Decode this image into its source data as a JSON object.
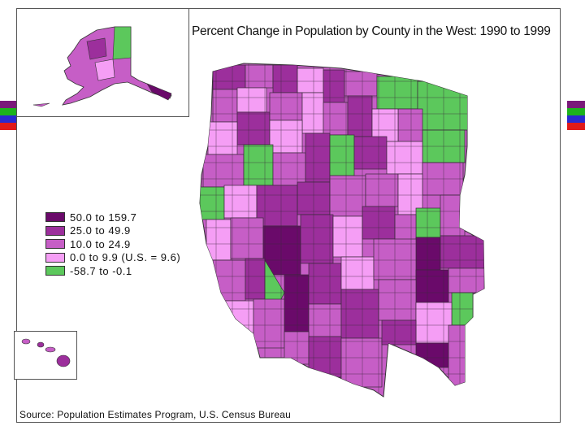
{
  "title": "Percent Change in Population by County in the West: 1990 to 1999",
  "source": "Source: Population Estimates Program, U.S. Census Bureau",
  "legend": [
    {
      "label": "50.0 to 159.7",
      "color": "#6a0a6a"
    },
    {
      "label": "25.0 to 49.9",
      "color": "#9c2f9c"
    },
    {
      "label": "10.0 to 24.9",
      "color": "#c65ec6"
    },
    {
      "label": "0.0 to 9.9 (U.S. = 9.6)",
      "color": "#f59ef5"
    },
    {
      "label": "-58.7 to -0.1",
      "color": "#5cc85c"
    }
  ],
  "stripe_colors": [
    "#7a1a7a",
    "#1db31d",
    "#2a2ad0",
    "#e01a1a"
  ]
}
